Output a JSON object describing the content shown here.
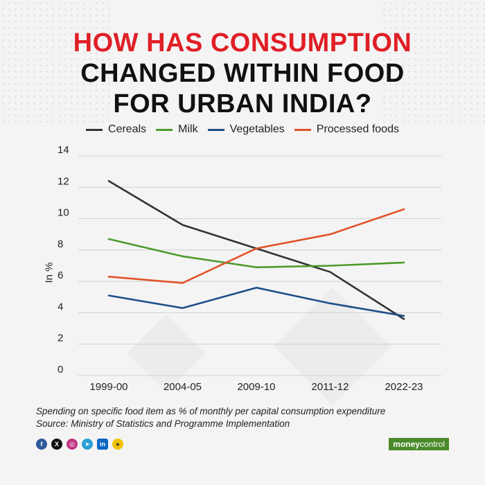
{
  "title": {
    "line1": "HOW HAS CONSUMPTION",
    "line2": "CHANGED WITHIN FOOD",
    "line3": "FOR URBAN INDIA?"
  },
  "footnote": {
    "line1": "Spending on specific food item as % of monthly per capital consumption expenditure",
    "line2": "Source: Ministry of Statistics and Programme Implementation"
  },
  "brand": {
    "part1": "money",
    "part2": "control"
  },
  "social_icons": [
    "facebook-icon",
    "x-icon",
    "instagram-icon",
    "telegram-icon",
    "linkedin-icon",
    "koo-icon"
  ],
  "chart_data": {
    "type": "line",
    "title": "",
    "xlabel": "",
    "ylabel": "In %",
    "categories": [
      "1999-00",
      "2004-05",
      "2009-10",
      "2011-12",
      "2022-23"
    ],
    "ylim": [
      0,
      14
    ],
    "yticks": [
      0,
      2,
      4,
      6,
      8,
      10,
      12,
      14
    ],
    "grid": true,
    "legend_position": "top",
    "series": [
      {
        "name": "Cereals",
        "color": "#333333",
        "values": [
          12.4,
          9.6,
          8.1,
          6.6,
          3.6
        ]
      },
      {
        "name": "Milk",
        "color": "#4c9a2a",
        "values": [
          8.7,
          7.6,
          6.9,
          7.0,
          7.2
        ]
      },
      {
        "name": "Vegetables",
        "color": "#1d4e89",
        "values": [
          5.1,
          4.3,
          5.6,
          4.6,
          3.8
        ]
      },
      {
        "name": "Processed foods",
        "color": "#e0532a",
        "values": [
          6.3,
          5.9,
          8.1,
          9.0,
          10.6
        ]
      }
    ]
  }
}
